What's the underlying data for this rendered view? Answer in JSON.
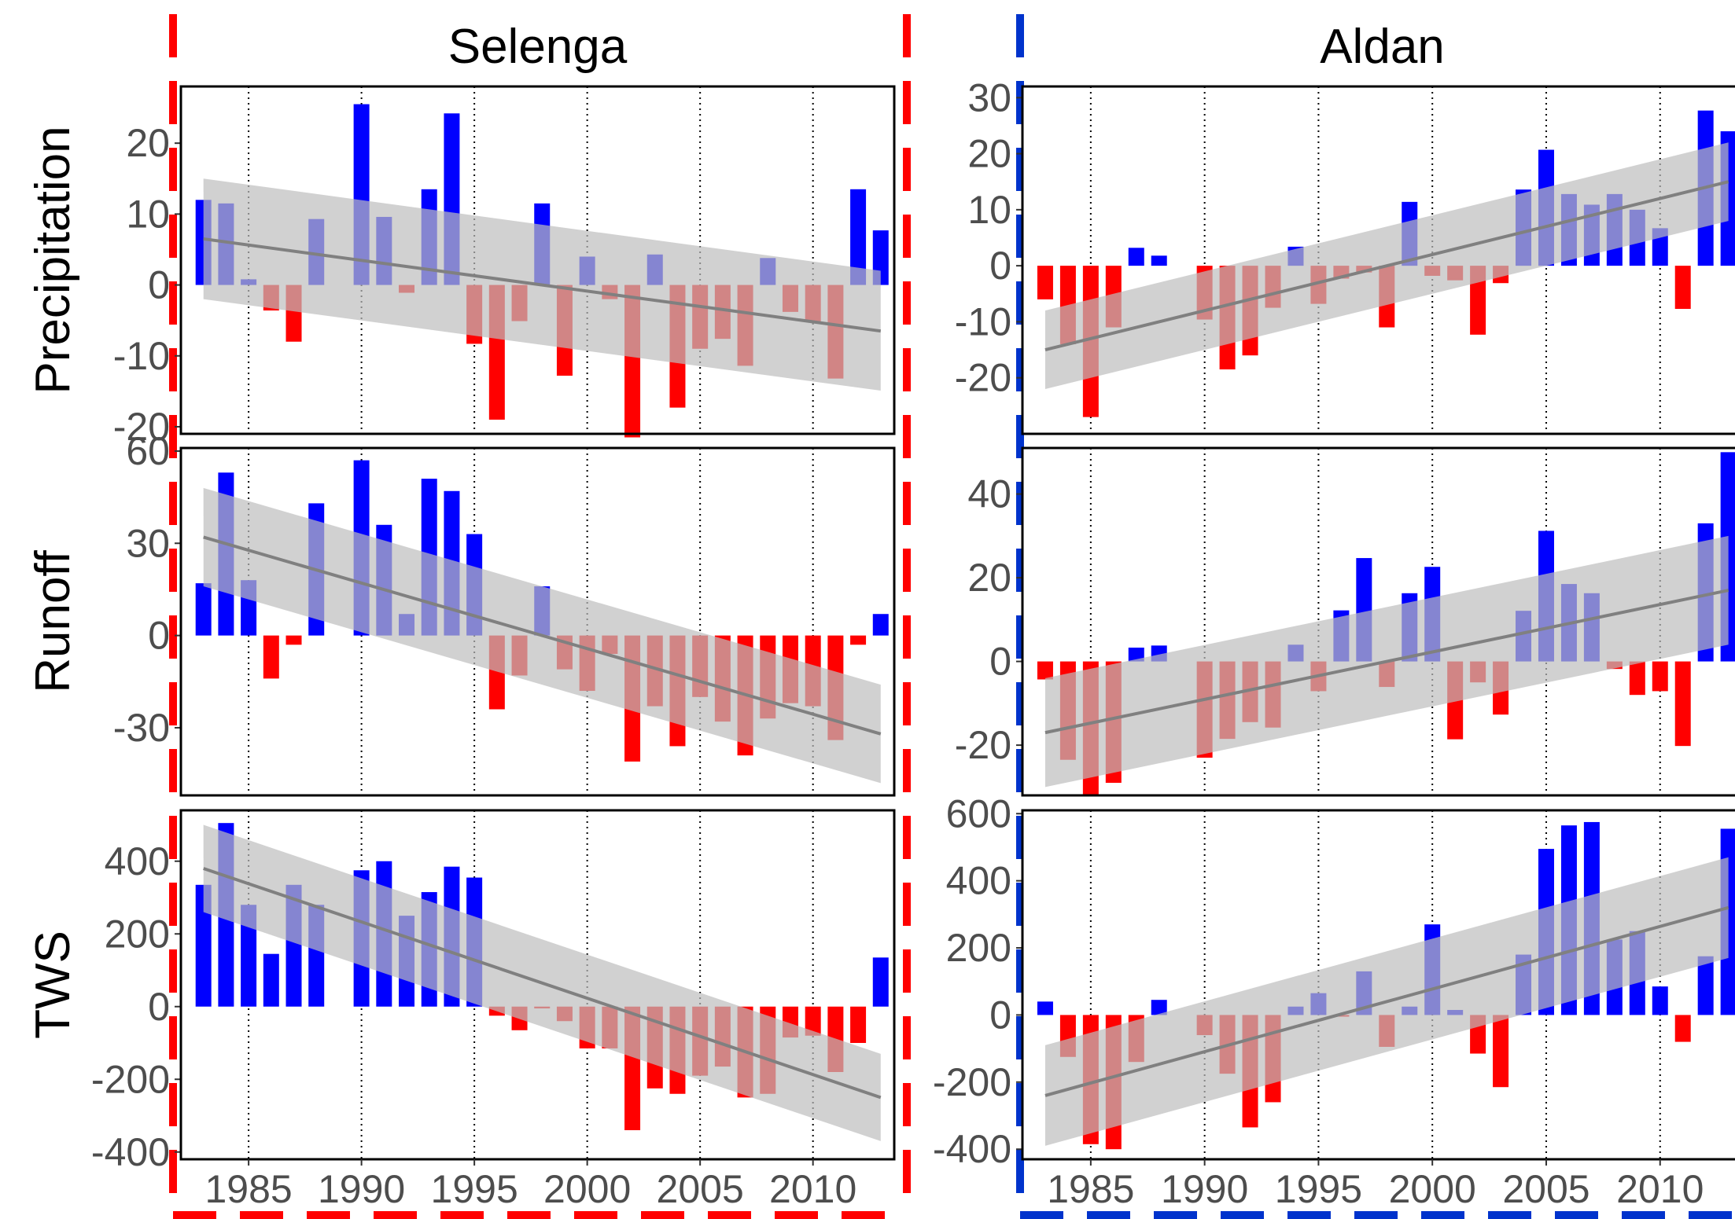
{
  "colors": {
    "positive": "#0000ff",
    "negative": "#ff0000",
    "trend_line": "#808080",
    "confidence_band": "#bebebe",
    "tick_text": "#4d4d4d",
    "selenga_frame": "#ff0000",
    "aldan_frame": "#0033cc"
  },
  "columns": [
    "Selenga",
    "Aldan"
  ],
  "rows": [
    "Precipitation",
    "Runoff",
    "TWS"
  ],
  "x_ticks": [
    "1985",
    "1990",
    "1995",
    "2000",
    "2005",
    "2010"
  ],
  "chart_data": [
    {
      "type": "bar",
      "basin": "Selenga",
      "variable": "Precipitation",
      "x": [
        1983,
        1984,
        1985,
        1986,
        1987,
        1988,
        1989,
        1990,
        1991,
        1992,
        1993,
        1994,
        1995,
        1996,
        1997,
        1998,
        1999,
        2000,
        2001,
        2002,
        2003,
        2004,
        2005,
        2006,
        2007,
        2008,
        2009,
        2010,
        2011,
        2012,
        2013
      ],
      "values": [
        12,
        11.5,
        0.8,
        -3.6,
        -8,
        9.3,
        0,
        25.5,
        9.6,
        -1.1,
        13.5,
        24.2,
        -8.3,
        -19,
        -5.1,
        11.5,
        -12.8,
        4,
        -2,
        -21.5,
        4.3,
        -17.3,
        -9,
        -7.6,
        -11.4,
        3.8,
        -3.8,
        -5.2,
        -13.2,
        13.5,
        7.7
      ],
      "trend": {
        "start": 6.5,
        "end": -6.5,
        "band_start": [
          -2,
          15
        ],
        "band_end": [
          -14.9,
          2
        ]
      },
      "ylim": [
        -21,
        28
      ],
      "yticks": [
        -20,
        -10,
        0,
        10,
        20
      ]
    },
    {
      "type": "bar",
      "basin": "Selenga",
      "variable": "Runoff",
      "x": [
        1983,
        1984,
        1985,
        1986,
        1987,
        1988,
        1989,
        1990,
        1991,
        1992,
        1993,
        1994,
        1995,
        1996,
        1997,
        1998,
        1999,
        2000,
        2001,
        2002,
        2003,
        2004,
        2005,
        2006,
        2007,
        2008,
        2009,
        2010,
        2011,
        2012,
        2013
      ],
      "values": [
        17,
        53,
        18,
        -14,
        -3,
        43,
        0,
        57,
        36,
        7,
        51,
        47,
        33,
        -24,
        -13,
        16,
        -11,
        -18,
        -6,
        -41,
        -23,
        -36,
        -20,
        -28,
        -39,
        -27,
        -22,
        -23,
        -34,
        -3,
        7
      ],
      "trend": {
        "start": 32,
        "end": -32,
        "band_start": [
          16,
          48
        ],
        "band_end": [
          -48,
          -16
        ]
      },
      "ylim": [
        -52,
        61
      ],
      "yticks": [
        -30,
        0,
        30,
        60
      ]
    },
    {
      "type": "bar",
      "basin": "Selenga",
      "variable": "TWS",
      "x": [
        1983,
        1984,
        1985,
        1986,
        1987,
        1988,
        1989,
        1990,
        1991,
        1992,
        1993,
        1994,
        1995,
        1996,
        1997,
        1998,
        1999,
        2000,
        2001,
        2002,
        2003,
        2004,
        2005,
        2006,
        2007,
        2008,
        2009,
        2010,
        2011,
        2012,
        2013
      ],
      "values": [
        335,
        505,
        280,
        145,
        335,
        280,
        0,
        375,
        400,
        250,
        315,
        385,
        355,
        -25,
        -65,
        -5,
        -40,
        -115,
        -115,
        -340,
        -225,
        -240,
        -190,
        -165,
        -250,
        -240,
        -85,
        -80,
        -180,
        -100,
        135
      ],
      "trend": {
        "start": 380,
        "end": -250,
        "band_start": [
          260,
          500
        ],
        "band_end": [
          -370,
          -130
        ]
      },
      "ylim": [
        -420,
        540
      ],
      "yticks": [
        -400,
        -200,
        0,
        200,
        400
      ]
    },
    {
      "type": "bar",
      "basin": "Aldan",
      "variable": "Precipitation",
      "x": [
        1983,
        1984,
        1985,
        1986,
        1987,
        1988,
        1989,
        1990,
        1991,
        1992,
        1993,
        1994,
        1995,
        1996,
        1997,
        1998,
        1999,
        2000,
        2001,
        2002,
        2003,
        2004,
        2005,
        2006,
        2007,
        2008,
        2009,
        2010,
        2011,
        2012,
        2013
      ],
      "values": [
        -6,
        -14,
        -27,
        -11,
        3.2,
        1.8,
        0,
        -9.6,
        -18.5,
        -16,
        -7.5,
        3.4,
        -6.8,
        -2.3,
        -1.2,
        -11,
        11.4,
        -1.8,
        -2.6,
        -12.3,
        -3.1,
        13.6,
        20.7,
        12.8,
        10.9,
        12.8,
        10,
        6.7,
        -7.7,
        27.7,
        24
      ],
      "trend": {
        "start": -15,
        "end": 15,
        "band_start": [
          -22,
          -8
        ],
        "band_end": [
          8,
          22
        ]
      },
      "ylim": [
        -30,
        32
      ],
      "yticks": [
        -20,
        -10,
        0,
        10,
        20,
        30
      ]
    },
    {
      "type": "bar",
      "basin": "Aldan",
      "variable": "Runoff",
      "x": [
        1983,
        1984,
        1985,
        1986,
        1987,
        1988,
        1989,
        1990,
        1991,
        1992,
        1993,
        1994,
        1995,
        1996,
        1997,
        1998,
        1999,
        2000,
        2001,
        2002,
        2003,
        2004,
        2005,
        2006,
        2007,
        2008,
        2009,
        2010,
        2011,
        2012,
        2013
      ],
      "values": [
        -4.3,
        -23.5,
        -32,
        -29,
        3.3,
        3.8,
        0,
        -23,
        -18.5,
        -14.5,
        -15.8,
        4,
        -7.1,
        12.2,
        24.7,
        -6.1,
        16.3,
        22.6,
        -18.6,
        -5,
        -12.7,
        12.1,
        31.2,
        18.5,
        16.3,
        -1.8,
        -8,
        -7.1,
        -20.2,
        33,
        50
      ],
      "trend": {
        "start": -17,
        "end": 17,
        "band_start": [
          -30,
          -4
        ],
        "band_end": [
          4,
          30
        ]
      },
      "ylim": [
        -32,
        51
      ],
      "yticks": [
        -20,
        0,
        20,
        40
      ]
    },
    {
      "type": "bar",
      "basin": "Aldan",
      "variable": "TWS",
      "x": [
        1983,
        1984,
        1985,
        1986,
        1987,
        1988,
        1989,
        1990,
        1991,
        1992,
        1993,
        1994,
        1995,
        1996,
        1997,
        1998,
        1999,
        2000,
        2001,
        2002,
        2003,
        2004,
        2005,
        2006,
        2007,
        2008,
        2009,
        2010,
        2011,
        2012,
        2013
      ],
      "values": [
        40,
        -125,
        -385,
        -400,
        -140,
        45,
        0,
        -60,
        -175,
        -335,
        -260,
        25,
        65,
        -5,
        130,
        -95,
        25,
        270,
        15,
        -115,
        -215,
        180,
        495,
        565,
        575,
        225,
        250,
        85,
        -80,
        175,
        555
      ],
      "trend": {
        "start": -240,
        "end": 320,
        "band_start": [
          -390,
          -90
        ],
        "band_end": [
          170,
          470
        ]
      },
      "ylim": [
        -430,
        610
      ],
      "yticks": [
        -400,
        -200,
        0,
        200,
        400,
        600
      ]
    }
  ]
}
